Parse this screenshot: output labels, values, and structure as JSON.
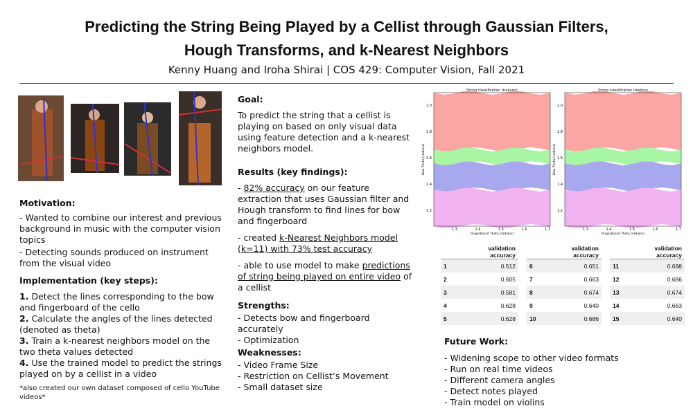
{
  "header": {
    "title_line1": "Predicting the String Being Played by a Cellist through Gaussian Filters,",
    "title_line2": "Hough Transforms, and k-Nearest Neighbors",
    "authors": "Kenny Huang and Iroha Shirai | COS 429: Computer Vision, Fall 2021"
  },
  "motivation": {
    "heading": "Motivation:",
    "items": [
      "- Wanted to combine our interest and previous background in music with the computer vision topics",
      "- Detecting sounds produced on instrument from the visual video"
    ]
  },
  "implementation": {
    "heading": "Implementation (key steps):",
    "steps": [
      {
        "num": "1.",
        "text": "Detect the lines corresponding to the bow and fingerboard of the cello"
      },
      {
        "num": "2.",
        "text": "Calculate the angles of the lines detected (denoted as theta)"
      },
      {
        "num": "3.",
        "text": "Train a k-nearest neighbors model on the two theta values detected"
      },
      {
        "num": "4.",
        "text": "Use the trained model to predict the strings played on by a cellist in a video"
      }
    ],
    "note": "*also created our own dataset composed of cello YouTube videos*"
  },
  "goal": {
    "heading": "Goal:",
    "text": "To predict the string that a cellist is playing on based on only visual data using feature detection and a k-nearest neighbors model."
  },
  "results": {
    "heading": "Results (key findings):",
    "items": [
      [
        {
          "text": "- "
        },
        {
          "text": "82% accuracy",
          "underline": true
        },
        {
          "text": " on our feature extraction that uses Gaussian filter and Hough transform to find lines for bow and fingerboard"
        }
      ],
      [
        {
          "text": "- created "
        },
        {
          "text": "k-Nearest Neighbors model (k=11) with 73% test accuracy",
          "underline": true
        }
      ],
      [
        {
          "text": "- able to use model to make "
        },
        {
          "text": "predictions of string being played on entire video",
          "underline": true
        },
        {
          "text": " of a cellist"
        }
      ]
    ]
  },
  "strengths": {
    "heading": "Strengths:",
    "items": [
      "- Detects bow and fingerboard accurately",
      "- Optimization"
    ]
  },
  "weaknesses": {
    "heading": "Weaknesses:",
    "items": [
      "- Video Frame Size",
      "- Restriction on Cellist’s Movement",
      "- Small dataset size"
    ]
  },
  "plots": [
    {
      "title": "String classification (training)",
      "xlabel": "Fingerboard Theta (radians)",
      "ylabel": "Bow Theta (radians)",
      "xticks": [
        "1.3",
        "1.4",
        "1.5",
        "1.6",
        "1.7"
      ],
      "yticks": [
        "2.0",
        "1.8",
        "1.6",
        "1.4",
        "1.2"
      ]
    },
    {
      "title": "String classification (testing)",
      "xlabel": "Fingerboard Theta (radians)",
      "ylabel": "Bow Theta (radians)",
      "xticks": [
        "1.3",
        "1.4",
        "1.5",
        "1.6",
        "1.7"
      ],
      "yticks": [
        "2.0",
        "1.8",
        "1.6",
        "1.4",
        "1.2"
      ]
    }
  ],
  "tables": [
    {
      "header": "validation accuracy",
      "rows": [
        [
          "1",
          "0.512"
        ],
        [
          "2",
          "0.605"
        ],
        [
          "3",
          "0.581"
        ],
        [
          "4",
          "0.628"
        ],
        [
          "5",
          "0.628"
        ]
      ]
    },
    {
      "header": "validation accuracy",
      "rows": [
        [
          "6",
          "0.651"
        ],
        [
          "7",
          "0.663"
        ],
        [
          "8",
          "0.674"
        ],
        [
          "9",
          "0.640"
        ],
        [
          "10",
          "0.686"
        ]
      ]
    },
    {
      "header": "validation accuracy",
      "rows": [
        [
          "11",
          "0.698"
        ],
        [
          "12",
          "0.686"
        ],
        [
          "13",
          "0.674"
        ],
        [
          "14",
          "0.663"
        ],
        [
          "15",
          "0.640"
        ]
      ]
    }
  ],
  "future_work": {
    "heading": "Future Work:",
    "items": [
      "- Widening scope to other video formats",
      "- Run on real time videos",
      "- Different camera angles",
      "- Detect notes played",
      "- Train model on violins"
    ]
  }
}
